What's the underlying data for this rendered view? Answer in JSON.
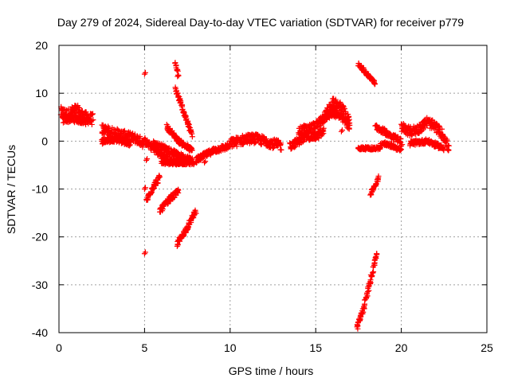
{
  "chart_data": {
    "type": "scatter",
    "title": "Day 279 of 2024, Sidereal Day-to-day VTEC variation (SDTVAR) for receiver p779",
    "xlabel": "GPS time / hours",
    "ylabel": "SDTVAR / TECUs",
    "xlim": [
      0,
      25
    ],
    "ylim": [
      -40,
      20
    ],
    "xticks": [
      0,
      5,
      10,
      15,
      20,
      25
    ],
    "yticks": [
      -40,
      -30,
      -20,
      -10,
      0,
      10,
      20
    ],
    "grid": true,
    "marker": "+",
    "marker_color": "#ff0000",
    "series": [
      {
        "name": "sdtvar",
        "segments": [
          {
            "x": [
              0.1,
              0.5,
              1.0,
              1.5,
              2.0
            ],
            "y": [
              6,
              5.5,
              6.5,
              5,
              4.5
            ],
            "spread": 1.2
          },
          {
            "x": [
              0.2,
              0.8,
              1.6
            ],
            "y": [
              4.5,
              4.8,
              4.2
            ],
            "spread": 0.8
          },
          {
            "x": [
              2.5,
              3.0,
              3.5,
              4.0,
              4.5,
              5.0
            ],
            "y": [
              2.5,
              2,
              1.5,
              1,
              0.5,
              -0.5
            ],
            "spread": 1.0
          },
          {
            "x": [
              2.5,
              3.3,
              4.2
            ],
            "y": [
              0,
              0.5,
              -0.5
            ],
            "spread": 0.6
          },
          {
            "x": [
              5.0,
              5.5,
              6.0,
              6.5,
              7.0
            ],
            "y": [
              0,
              -1.5,
              -3,
              -4,
              -4.5
            ],
            "spread": 0.7
          },
          {
            "x": [
              5.5,
              6.2,
              7.0,
              7.8
            ],
            "y": [
              -0.5,
              -1.5,
              -3,
              -4
            ],
            "spread": 0.6
          },
          {
            "x": [
              6.0,
              7.0,
              7.9
            ],
            "y": [
              -4.5,
              -4.5,
              -4.5
            ],
            "spread": 0.4
          },
          {
            "x": [
              6.3,
              7.0,
              7.8
            ],
            "y": [
              3,
              0,
              -2
            ],
            "spread": 0.5
          },
          {
            "x": [
              6.8,
              7.3,
              7.8
            ],
            "y": [
              11,
              6,
              1
            ],
            "spread": 0.5
          },
          {
            "x": [
              6.8,
              7.0
            ],
            "y": [
              16.5,
              13
            ],
            "spread": 0.5
          },
          {
            "x": [
              5.1,
              5.5,
              5.9
            ],
            "y": [
              -12.5,
              -9.5,
              -7.5
            ],
            "spread": 0.6
          },
          {
            "x": [
              5.9,
              6.5,
              7.0
            ],
            "y": [
              -14.5,
              -12,
              -10.5
            ],
            "spread": 0.6
          },
          {
            "x": [
              6.9,
              7.5,
              8.0
            ],
            "y": [
              -21.5,
              -18,
              -14.5
            ],
            "spread": 0.5
          },
          {
            "x": [
              8.0,
              8.5,
              9.0,
              9.5,
              10.0
            ],
            "y": [
              -4,
              -3,
              -2,
              -1.5,
              -1
            ],
            "spread": 0.6
          },
          {
            "x": [
              10.0,
              10.5,
              11.0,
              11.5,
              12.0,
              12.5,
              13.0
            ],
            "y": [
              -0.5,
              0,
              0.5,
              0.5,
              0,
              -0.5,
              -1
            ],
            "spread": 1.0
          },
          {
            "x": [
              13.5,
              14.0,
              14.5,
              15.0,
              15.5
            ],
            "y": [
              -1,
              0,
              1,
              1,
              2
            ],
            "spread": 0.8
          },
          {
            "x": [
              14.0,
              15.0,
              15.5,
              16.0,
              16.5,
              17.0
            ],
            "y": [
              2,
              3,
              5,
              8,
              7,
              4
            ],
            "spread": 1.0
          },
          {
            "x": [
              15.5,
              16.0,
              16.5,
              17.0
            ],
            "y": [
              5,
              6,
              5,
              3
            ],
            "spread": 0.8
          },
          {
            "x": [
              17.5,
              18.0,
              18.5
            ],
            "y": [
              16,
              14,
              12
            ],
            "spread": 0.4
          },
          {
            "x": [
              17.5,
              18.2,
              18.8
            ],
            "y": [
              -1.5,
              -1.5,
              -1.5
            ],
            "spread": 0.3
          },
          {
            "x": [
              17.4,
              17.8,
              18.2,
              18.6
            ],
            "y": [
              -39,
              -35,
              -29,
              -23
            ],
            "spread": 0.6
          },
          {
            "x": [
              18.2,
              18.5,
              18.7
            ],
            "y": [
              -11,
              -9,
              -7.5
            ],
            "spread": 0.4
          },
          {
            "x": [
              18.5,
              19.0,
              19.5,
              20.0
            ],
            "y": [
              3,
              2,
              1,
              0
            ],
            "spread": 0.6
          },
          {
            "x": [
              18.8,
              19.5,
              20.0
            ],
            "y": [
              -0.5,
              -1,
              -2
            ],
            "spread": 0.4
          },
          {
            "x": [
              20.0,
              20.5,
              21.0,
              21.5,
              22.0,
              22.5,
              22.8
            ],
            "y": [
              3,
              2,
              2.5,
              4,
              3,
              1,
              -2
            ],
            "spread": 1.0
          },
          {
            "x": [
              20.5,
              21.5,
              22.5
            ],
            "y": [
              -0.5,
              0,
              -1.5
            ],
            "spread": 0.5
          }
        ],
        "isolated": [
          {
            "x": 5.0,
            "y": 14
          },
          {
            "x": 5.0,
            "y": -23.5
          },
          {
            "x": 5.0,
            "y": -10
          },
          {
            "x": 5.1,
            "y": -4
          },
          {
            "x": 8.5,
            "y": -4.5
          },
          {
            "x": 16.5,
            "y": 2
          },
          {
            "x": 19.0,
            "y": -0.5
          },
          {
            "x": 20.0,
            "y": -1
          }
        ]
      }
    ]
  }
}
